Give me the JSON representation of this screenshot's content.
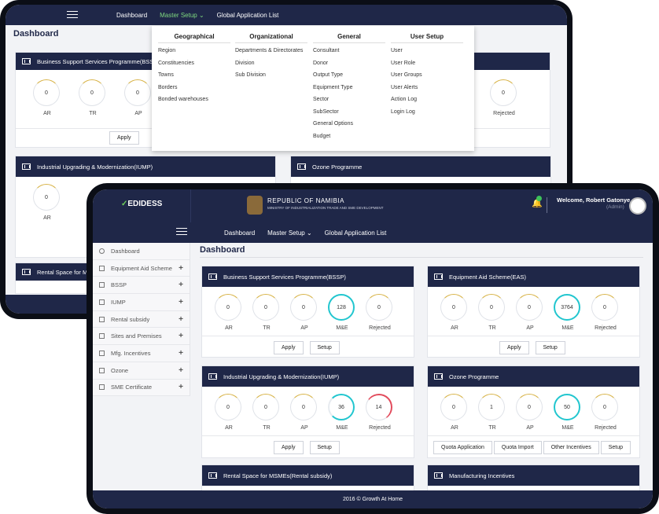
{
  "back": {
    "nav": {
      "dashboard": "Dashboard",
      "master": "Master Setup",
      "global": "Global Application List"
    },
    "title": "Dashboard",
    "mega": {
      "cols": [
        {
          "head": "Geographical",
          "items": [
            "Region",
            "Constituencies",
            "Towns",
            "Borders",
            "Bonded warehouses"
          ]
        },
        {
          "head": "Organizational",
          "items": [
            "Departments & Directorates",
            "Division",
            "Sub Division"
          ]
        },
        {
          "head": "General",
          "items": [
            "Consultant",
            "Donor",
            "Output Type",
            "Equipment Type",
            "Sector",
            "SubSector",
            "General Options",
            "Budget"
          ]
        },
        {
          "head": "User Setup",
          "items": [
            "User",
            "User Role",
            "User Groups",
            "User Alerts",
            "Action Log",
            "Login Log"
          ]
        }
      ]
    },
    "cards": {
      "bssp": "Business Support Services Programme(BSSP)",
      "iump": "Industrial Upgrading & Modernization(IUMP)",
      "ozone": "Ozone Programme",
      "rental": "Rental Space for M"
    },
    "bssp_vals": [
      "0",
      "0",
      "0"
    ],
    "bssp_labels": [
      "AR",
      "TR",
      "AP"
    ],
    "right_val": "0",
    "right_label": "Rejected",
    "iump_val": "0",
    "iump_label": "AR",
    "apply": "Apply"
  },
  "front": {
    "brand": "EDIDESS",
    "republic": "REPUBLIC OF NAMIBIA",
    "ministry": "MINISTRY OF INDUSTRIALIZATION TRADE AND SME DEVELOPMENT",
    "welcome": "Welcome, Robert Gatonye",
    "role": "(Admin)",
    "nav": {
      "dashboard": "Dashboard",
      "master": "Master Setup",
      "global": "Global Application List"
    },
    "sidebar": [
      "Dashboard",
      "Equipment Aid Scheme",
      "BSSP",
      "IUMP",
      "Rental subsidy",
      "Sites and Premises",
      "Mfg. Incentives",
      "Ozone",
      "SME Certificate"
    ],
    "title": "Dashboard",
    "labels": [
      "AR",
      "TR",
      "AP",
      "M&E",
      "Rejected"
    ],
    "cards": [
      {
        "title": "Business Support Services Programme(BSSP)",
        "values": [
          "0",
          "0",
          "0",
          "128",
          "0"
        ],
        "buttons": [
          "Apply",
          "Setup"
        ]
      },
      {
        "title": "Equipment Aid Scheme(EAS)",
        "values": [
          "0",
          "0",
          "0",
          "3764",
          "0"
        ],
        "buttons": [
          "Apply",
          "Setup"
        ]
      },
      {
        "title": "Industrial Upgrading & Modernization(IUMP)",
        "values": [
          "0",
          "0",
          "0",
          "36",
          "14"
        ],
        "buttons": [
          "Apply",
          "Setup"
        ]
      },
      {
        "title": "Ozone Programme",
        "values": [
          "0",
          "1",
          "0",
          "50",
          "0"
        ],
        "buttons": [
          "Quota Application",
          "Quota Import",
          "Other Incentives",
          "Setup"
        ]
      },
      {
        "title": "Rental Space for MSMEs(Rental subsidy)"
      },
      {
        "title": "Manufacturing Incentives"
      }
    ],
    "footer": "2016 © Growth At Home"
  }
}
